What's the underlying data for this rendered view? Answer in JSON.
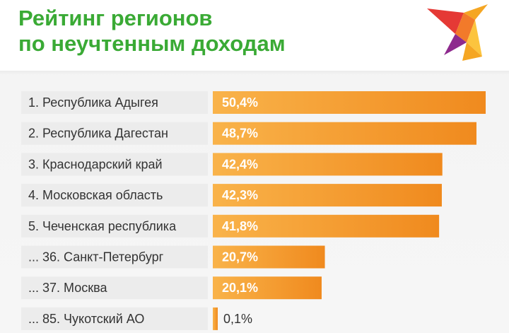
{
  "header": {
    "title_line_1": "Рейтинг регионов",
    "title_line_2": "по неучтенным доходам"
  },
  "logo": {
    "icon": "swallow-logo-icon",
    "colors": [
      "#e53935",
      "#f5a623",
      "#8e2a8e",
      "#fcc43e"
    ]
  },
  "colors": {
    "title": "#3aaa35",
    "bar_start": "#f9b34a",
    "bar_end": "#f08a1e",
    "label_box": "#ececec",
    "background": "#f4f4f4"
  },
  "chart_data": {
    "type": "bar",
    "orientation": "horizontal",
    "title": "Рейтинг регионов по неучтенным доходам",
    "categories": [
      "1. Республика Адыгея",
      "2. Республика Дагестан",
      "3. Краснодарский край",
      "4. Московская область",
      "5. Чеченская республика",
      "... 36. Санкт-Петербург",
      "... 37. Москва",
      "... 85. Чукотский АО"
    ],
    "values": [
      50.4,
      48.7,
      42.4,
      42.3,
      41.8,
      20.7,
      20.1,
      0.1
    ],
    "value_labels": [
      "50,4%",
      "48,7%",
      "42,4%",
      "42,3%",
      "41,8%",
      "20,7%",
      "20,1%",
      "0,1%"
    ],
    "unit": "%",
    "xlim": [
      0,
      50.4
    ],
    "grid": false,
    "legend": "none"
  }
}
